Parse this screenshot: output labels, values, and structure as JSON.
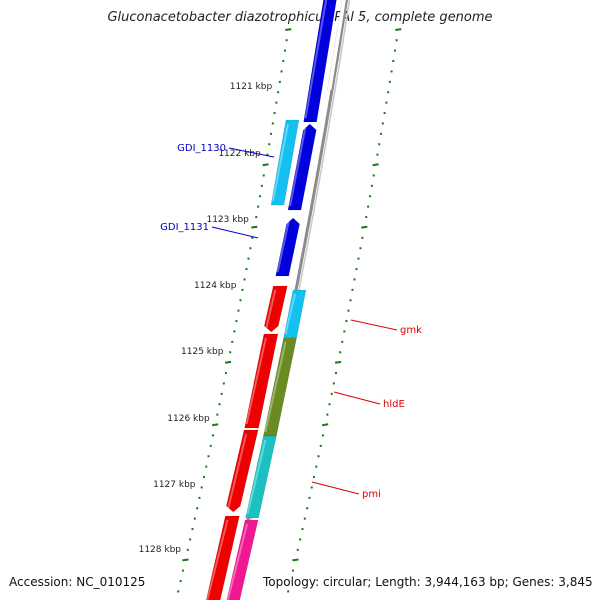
{
  "title": "Gluconacetobacter diazotrophicus PAl 5, complete genome",
  "footer": {
    "accession": "Accession: NC_010125",
    "topology": "Topology: circular; Length: 3,944,163 bp; Genes: 3,845"
  },
  "ruler": {
    "unit": "kbp",
    "labels": [
      "1121 kbp",
      "1122 kbp",
      "1123 kbp",
      "1124 kbp",
      "1125 kbp",
      "1126 kbp",
      "1127 kbp",
      "1128 kbp"
    ]
  },
  "gene_labels": [
    {
      "name": "GDI_1130",
      "color": "#0000cc"
    },
    {
      "name": "GDI_1131",
      "color": "#0000cc"
    },
    {
      "name": "gmk",
      "color": "#dd0000"
    },
    {
      "name": "hldE",
      "color": "#dd0000"
    },
    {
      "name": "pmi",
      "color": "#dd0000"
    }
  ],
  "colors": {
    "backbone": "#8c8c8c",
    "ruler_ticks": "#1a7a1a",
    "gene_blue": "#0000dd",
    "gene_lightblue": "#14c0f0",
    "gene_red": "#ee0000",
    "gene_olive": "#6a8a22",
    "gene_teal": "#1cc0c0",
    "gene_pink": "#f01890"
  }
}
